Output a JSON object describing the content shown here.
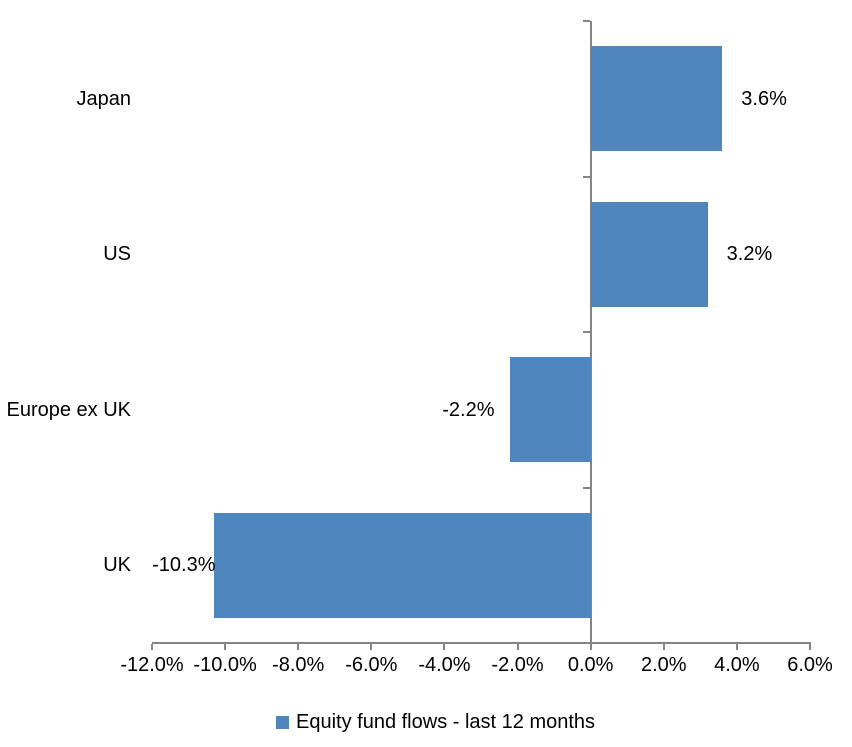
{
  "chart_data": {
    "type": "bar",
    "orientation": "horizontal",
    "title": "",
    "categories": [
      "Japan",
      "US",
      "Europe ex UK",
      "UK"
    ],
    "series": [
      {
        "name": "Equity fund flows - last 12 months",
        "values": [
          3.6,
          3.2,
          -2.2,
          -10.3
        ],
        "value_labels": [
          "3.6%",
          "3.2%",
          "-2.2%",
          "-10.3%"
        ]
      }
    ],
    "xlabel": "",
    "ylabel": "",
    "xlim": [
      -12,
      6
    ],
    "x_ticks": [
      -12,
      -10,
      -8,
      -6,
      -4,
      -2,
      0,
      2,
      4,
      6
    ],
    "x_tick_labels": [
      "-12.0%",
      "-10.0%",
      "-8.0%",
      "-6.0%",
      "-4.0%",
      "-2.0%",
      "0.0%",
      "2.0%",
      "4.0%",
      "6.0%"
    ],
    "grid": false,
    "legend_position": "bottom",
    "colors": {
      "bar_fill": "#4e86bd",
      "axis_line": "#848484",
      "label_text": "#000000"
    }
  },
  "legend": {
    "label": "Equity fund flows - last 12 months",
    "swatch_color": "#4e86bd"
  }
}
